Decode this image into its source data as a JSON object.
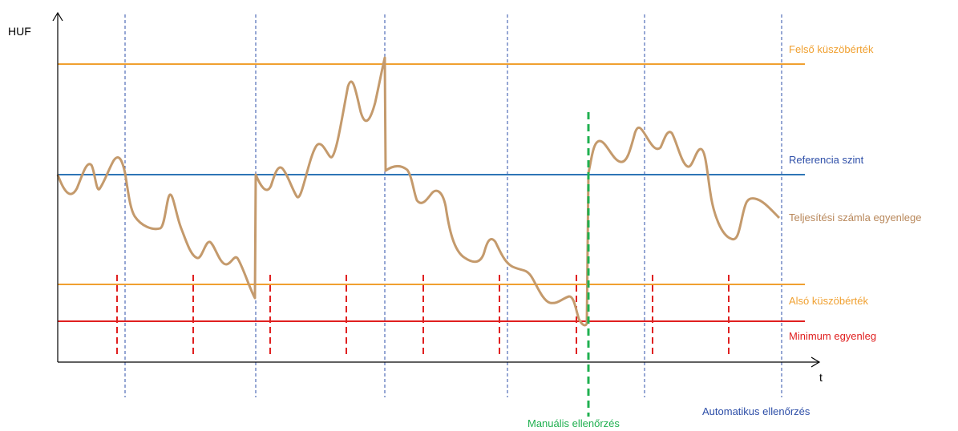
{
  "axes": {
    "y_label": "HUF",
    "x_label": "t"
  },
  "levels": {
    "upper_threshold": {
      "label": "Felső küszöbérték",
      "color": "#f0a030"
    },
    "reference": {
      "label": "Referencia szint",
      "color": "#2e75b6"
    },
    "lower_threshold": {
      "label": "Alsó küszöbérték",
      "color": "#f0a030"
    },
    "minimum": {
      "label": "Minimum egyenleg",
      "color": "#e02020"
    }
  },
  "balance": {
    "label": "Teljesítési számla egyenlege",
    "color": "#c49a6c"
  },
  "checks": {
    "manual": {
      "label": "Manuális ellenőrzés",
      "color": "#20b050"
    },
    "automatic": {
      "label": "Automatikus ellenőrzés",
      "color": "#2e4fa8"
    }
  }
}
